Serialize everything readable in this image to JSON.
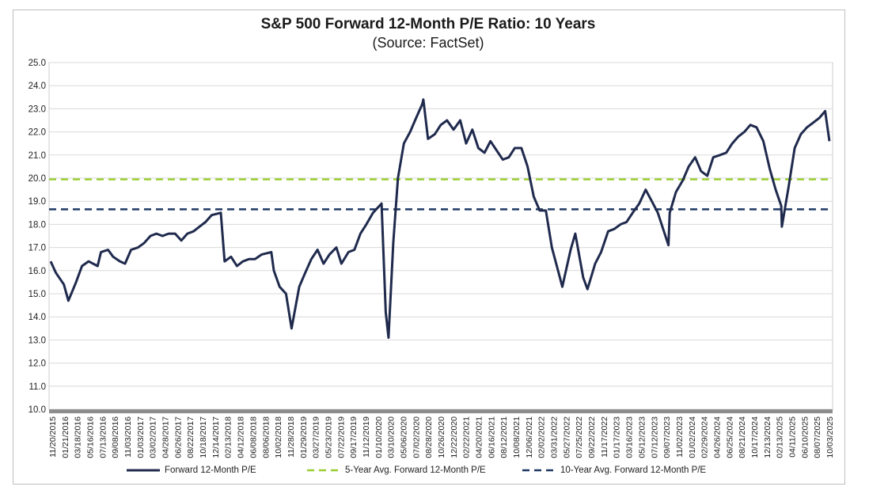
{
  "chart_data": {
    "type": "line",
    "title": "S&P 500 Forward 12-Month P/E Ratio: 10 Years",
    "subtitle": "(Source: FactSet)",
    "ylim": [
      10.0,
      25.0
    ],
    "yticks": [
      "10.0",
      "11.0",
      "12.0",
      "13.0",
      "14.0",
      "15.0",
      "16.0",
      "17.0",
      "18.0",
      "19.0",
      "20.0",
      "21.0",
      "22.0",
      "23.0",
      "24.0",
      "25.0"
    ],
    "x_ticks": [
      "11/20/2015",
      "01/21/2016",
      "03/18/2016",
      "05/16/2016",
      "07/13/2016",
      "09/08/2016",
      "11/03/2016",
      "01/03/2017",
      "03/02/2017",
      "04/28/2017",
      "06/26/2017",
      "08/22/2017",
      "10/18/2017",
      "12/14/2017",
      "02/13/2018",
      "04/12/2018",
      "06/08/2018",
      "08/06/2018",
      "10/02/2018",
      "11/28/2018",
      "01/29/2019",
      "03/27/2019",
      "05/23/2019",
      "07/22/2019",
      "09/17/2019",
      "11/12/2019",
      "01/10/2020",
      "03/10/2020",
      "05/06/2020",
      "07/02/2020",
      "08/28/2020",
      "10/26/2020",
      "12/22/2020",
      "02/22/2021",
      "04/20/2021",
      "06/16/2021",
      "08/12/2021",
      "10/08/2021",
      "12/06/2021",
      "02/02/2022",
      "03/31/2022",
      "05/27/2022",
      "07/25/2022",
      "09/22/2022",
      "11/17/2022",
      "01/17/2023",
      "03/16/2023",
      "05/12/2023",
      "07/12/2023",
      "09/07/2023",
      "11/02/2023",
      "01/02/2024",
      "02/29/2024",
      "04/26/2024",
      "06/25/2024",
      "08/21/2024",
      "10/17/2024",
      "12/13/2024",
      "02/13/2025",
      "04/11/2025",
      "06/10/2025",
      "08/07/2025",
      "10/03/2025"
    ],
    "series": [
      {
        "name": "Forward 12-Month P/E",
        "color": "#1f2a4d",
        "x": [
          "11/20/2015",
          "12/15/2015",
          "01/21/2016",
          "02/11/2016",
          "03/18/2016",
          "04/15/2016",
          "05/16/2016",
          "06/27/2016",
          "07/13/2016",
          "08/15/2016",
          "09/08/2016",
          "10/10/2016",
          "11/03/2016",
          "12/01/2016",
          "01/03/2017",
          "02/01/2017",
          "03/02/2017",
          "03/30/2017",
          "04/28/2017",
          "05/26/2017",
          "06/26/2017",
          "07/25/2017",
          "08/22/2017",
          "09/20/2017",
          "10/18/2017",
          "11/15/2017",
          "12/14/2017",
          "01/26/2018",
          "02/13/2018",
          "03/15/2018",
          "04/12/2018",
          "05/10/2018",
          "06/08/2018",
          "07/06/2018",
          "08/06/2018",
          "09/20/2018",
          "10/02/2018",
          "10/29/2018",
          "11/28/2018",
          "12/24/2018",
          "01/29/2019",
          "02/26/2019",
          "03/27/2019",
          "04/25/2019",
          "05/23/2019",
          "06/20/2019",
          "07/22/2019",
          "08/15/2019",
          "09/17/2019",
          "10/15/2019",
          "11/12/2019",
          "12/10/2019",
          "01/10/2020",
          "02/19/2020",
          "03/10/2020",
          "03/23/2020",
          "04/14/2020",
          "05/06/2020",
          "06/03/2020",
          "07/02/2020",
          "07/30/2020",
          "08/28/2020",
          "09/02/2020",
          "09/24/2020",
          "10/26/2020",
          "11/23/2020",
          "12/22/2020",
          "01/22/2021",
          "02/22/2021",
          "03/22/2021",
          "04/20/2021",
          "05/18/2021",
          "06/16/2021",
          "07/14/2021",
          "08/12/2021",
          "09/10/2021",
          "10/08/2021",
          "11/05/2021",
          "12/06/2021",
          "01/04/2022",
          "02/02/2022",
          "03/02/2022",
          "03/31/2022",
          "04/28/2022",
          "05/27/2022",
          "06/16/2022",
          "07/25/2022",
          "08/16/2022",
          "09/22/2022",
          "10/12/2022",
          "11/17/2022",
          "12/15/2022",
          "01/17/2023",
          "02/15/2023",
          "03/16/2023",
          "04/13/2023",
          "05/12/2023",
          "06/12/2023",
          "07/12/2023",
          "08/10/2023",
          "09/07/2023",
          "10/27/2023",
          "11/02/2023",
          "12/01/2023",
          "01/02/2024",
          "01/30/2024",
          "02/29/2024",
          "03/28/2024",
          "04/26/2024",
          "05/24/2024",
          "06/25/2024",
          "07/24/2024",
          "08/21/2024",
          "09/19/2024",
          "10/17/2024",
          "11/14/2024",
          "12/13/2024",
          "01/14/2025",
          "02/13/2025",
          "03/13/2025",
          "04/08/2025",
          "04/11/2025",
          "05/12/2025",
          "06/10/2025",
          "07/09/2025",
          "08/07/2025",
          "09/05/2025",
          "10/03/2025",
          "10/31/2025",
          "11/20/2025"
        ],
        "values": [
          16.4,
          15.9,
          15.4,
          14.7,
          15.5,
          16.2,
          16.4,
          16.2,
          16.8,
          16.9,
          16.6,
          16.4,
          16.3,
          16.9,
          17.0,
          17.2,
          17.5,
          17.6,
          17.5,
          17.6,
          17.6,
          17.3,
          17.6,
          17.7,
          17.9,
          18.1,
          18.4,
          18.5,
          16.4,
          16.6,
          16.2,
          16.4,
          16.5,
          16.5,
          16.7,
          16.8,
          16.0,
          15.3,
          15.0,
          13.5,
          15.3,
          15.9,
          16.5,
          16.9,
          16.3,
          16.7,
          17.0,
          16.3,
          16.8,
          16.9,
          17.6,
          18.0,
          18.5,
          18.9,
          14.2,
          13.1,
          17.2,
          20.0,
          21.5,
          22.0,
          22.6,
          23.2,
          23.4,
          21.7,
          21.9,
          22.3,
          22.5,
          22.1,
          22.5,
          21.5,
          22.1,
          21.3,
          21.1,
          21.6,
          21.2,
          20.8,
          20.9,
          21.3,
          21.3,
          20.5,
          19.2,
          18.6,
          18.6,
          17.0,
          16.0,
          15.3,
          16.9,
          17.6,
          15.7,
          15.2,
          16.3,
          16.8,
          17.7,
          17.8,
          18.0,
          18.1,
          18.5,
          18.9,
          19.5,
          19.0,
          18.5,
          17.1,
          18.5,
          19.4,
          19.9,
          20.5,
          20.9,
          20.3,
          20.1,
          20.9,
          21.0,
          21.1,
          21.5,
          21.8,
          22.0,
          22.3,
          22.2,
          21.6,
          20.4,
          19.5,
          18.8,
          17.9,
          19.6,
          21.3,
          21.9,
          22.2,
          22.4,
          22.6,
          22.9,
          21.6
        ]
      },
      {
        "name": "5-Year Avg. Forward 12-Month P/E",
        "color": "#9acd32",
        "value": 19.95
      },
      {
        "name": "10-Year Avg. Forward 12-Month P/E",
        "color": "#1f3864",
        "value": 18.65
      }
    ],
    "grid": true,
    "legend": "bottom"
  }
}
